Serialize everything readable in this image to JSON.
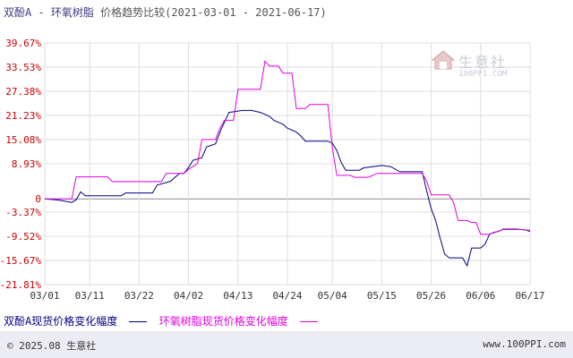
{
  "title": {
    "main": "双酚A - 环氧树脂",
    "sub": "价格趋势比较(2021-03-01 - 2021-06-17)"
  },
  "watermark": {
    "name": "生意社",
    "url": "100PPI.COM"
  },
  "legend": [
    {
      "label": "双酚A现货价格变化幅度",
      "color": "#000080"
    },
    {
      "label": "环氧树脂现货价格变化幅度",
      "color": "#e000e0"
    }
  ],
  "footer": {
    "copyright": "© 2025.08 生意社",
    "site": "www.100PPI.com"
  },
  "chart_data": {
    "type": "line",
    "y_unit": "%",
    "ylim": [
      -21.81,
      39.67
    ],
    "y_ticks": [
      "39.67%",
      "33.53%",
      "27.38%",
      "21.23%",
      "15.08%",
      "8.93%",
      "0",
      "-3.37%",
      "-9.52%",
      "-15.67%",
      "-21.81%"
    ],
    "y_tick_values": [
      39.67,
      33.53,
      27.38,
      21.23,
      15.08,
      8.93,
      0,
      -3.37,
      -9.52,
      -15.67,
      -21.81
    ],
    "x_range": [
      "2021-03-01",
      "2021-06-17"
    ],
    "x_ticks": [
      "03/01",
      "03/11",
      "03/22",
      "04/02",
      "04/13",
      "04/24",
      "05/04",
      "05/15",
      "05/26",
      "06/06",
      "06/17"
    ],
    "x_tick_dates": [
      "2021-03-01",
      "2021-03-11",
      "2021-03-22",
      "2021-04-02",
      "2021-04-13",
      "2021-04-24",
      "2021-05-04",
      "2021-05-15",
      "2021-05-26",
      "2021-06-06",
      "2021-06-17"
    ],
    "grid": true,
    "legend_position": "bottom",
    "series": [
      {
        "name": "双酚A现货价格变化幅度",
        "color": "#000080",
        "points": [
          [
            "2021-03-01",
            0
          ],
          [
            "2021-03-04",
            -0.3
          ],
          [
            "2021-03-06",
            -0.7
          ],
          [
            "2021-03-07",
            -0.9
          ],
          [
            "2021-03-08",
            -0.2
          ],
          [
            "2021-03-09",
            1.8
          ],
          [
            "2021-03-10",
            0.8
          ],
          [
            "2021-03-18",
            0.8
          ],
          [
            "2021-03-19",
            1.5
          ],
          [
            "2021-03-25",
            1.5
          ],
          [
            "2021-03-26",
            3.5
          ],
          [
            "2021-03-29",
            4.5
          ],
          [
            "2021-03-30",
            5.5
          ],
          [
            "2021-03-31",
            6.5
          ],
          [
            "2021-04-01",
            6.5
          ],
          [
            "2021-04-02",
            8.0
          ],
          [
            "2021-04-03",
            9.8
          ],
          [
            "2021-04-05",
            10.5
          ],
          [
            "2021-04-06",
            13.2
          ],
          [
            "2021-04-08",
            14.0
          ],
          [
            "2021-04-09",
            17.0
          ],
          [
            "2021-04-10",
            19.5
          ],
          [
            "2021-04-11",
            22.0
          ],
          [
            "2021-04-14",
            22.5
          ],
          [
            "2021-04-16",
            22.5
          ],
          [
            "2021-04-18",
            22.0
          ],
          [
            "2021-04-20",
            21.0
          ],
          [
            "2021-04-21",
            20.0
          ],
          [
            "2021-04-23",
            19.0
          ],
          [
            "2021-04-24",
            18.0
          ],
          [
            "2021-04-26",
            17.0
          ],
          [
            "2021-04-27",
            16.0
          ],
          [
            "2021-04-28",
            14.7
          ],
          [
            "2021-05-03",
            14.7
          ],
          [
            "2021-05-04",
            14.2
          ],
          [
            "2021-05-05",
            12.3
          ],
          [
            "2021-05-06",
            9.2
          ],
          [
            "2021-05-07",
            7.3
          ],
          [
            "2021-05-10",
            7.3
          ],
          [
            "2021-05-11",
            7.9
          ],
          [
            "2021-05-15",
            8.5
          ],
          [
            "2021-05-17",
            8.2
          ],
          [
            "2021-05-19",
            6.9
          ],
          [
            "2021-05-24",
            6.9
          ],
          [
            "2021-05-25",
            2.0
          ],
          [
            "2021-05-26",
            -2.5
          ],
          [
            "2021-05-27",
            -5.5
          ],
          [
            "2021-05-28",
            -10.0
          ],
          [
            "2021-05-29",
            -14.0
          ],
          [
            "2021-05-30",
            -15.0
          ],
          [
            "2021-06-02",
            -15.0
          ],
          [
            "2021-06-03",
            -17.0
          ],
          [
            "2021-06-04",
            -12.5
          ],
          [
            "2021-06-06",
            -12.5
          ],
          [
            "2021-06-07",
            -11.5
          ],
          [
            "2021-06-08",
            -9.0
          ],
          [
            "2021-06-09",
            -8.5
          ],
          [
            "2021-06-10",
            -8.3
          ],
          [
            "2021-06-11",
            -7.7
          ],
          [
            "2021-06-14",
            -7.7
          ],
          [
            "2021-06-16",
            -7.9
          ],
          [
            "2021-06-17",
            -8.3
          ]
        ]
      },
      {
        "name": "环氧树脂现货价格变化幅度",
        "color": "#e000e0",
        "points": [
          [
            "2021-03-01",
            0
          ],
          [
            "2021-03-07",
            0
          ],
          [
            "2021-03-08",
            5.6
          ],
          [
            "2021-03-15",
            5.6
          ],
          [
            "2021-03-16",
            4.4
          ],
          [
            "2021-03-27",
            4.4
          ],
          [
            "2021-03-28",
            6.5
          ],
          [
            "2021-04-01",
            6.5
          ],
          [
            "2021-04-02",
            7.5
          ],
          [
            "2021-04-04",
            9.0
          ],
          [
            "2021-04-05",
            15.1
          ],
          [
            "2021-04-08",
            15.1
          ],
          [
            "2021-04-09",
            18.0
          ],
          [
            "2021-04-10",
            20.0
          ],
          [
            "2021-04-12",
            20.0
          ],
          [
            "2021-04-13",
            27.9
          ],
          [
            "2021-04-18",
            27.9
          ],
          [
            "2021-04-19",
            35.0
          ],
          [
            "2021-04-20",
            33.8
          ],
          [
            "2021-04-22",
            33.8
          ],
          [
            "2021-04-23",
            32.0
          ],
          [
            "2021-04-25",
            32.0
          ],
          [
            "2021-04-26",
            23.0
          ],
          [
            "2021-04-28",
            23.0
          ],
          [
            "2021-04-29",
            24.0
          ],
          [
            "2021-05-03",
            24.0
          ],
          [
            "2021-05-04",
            13.0
          ],
          [
            "2021-05-05",
            6.0
          ],
          [
            "2021-05-08",
            6.0
          ],
          [
            "2021-05-09",
            5.5
          ],
          [
            "2021-05-12",
            5.5
          ],
          [
            "2021-05-14",
            6.5
          ],
          [
            "2021-05-24",
            6.5
          ],
          [
            "2021-05-25",
            4.5
          ],
          [
            "2021-05-26",
            1.0
          ],
          [
            "2021-05-30",
            1.0
          ],
          [
            "2021-05-31",
            -1.0
          ],
          [
            "2021-06-01",
            -5.5
          ],
          [
            "2021-06-03",
            -5.5
          ],
          [
            "2021-06-04",
            -6.0
          ],
          [
            "2021-06-05",
            -6.0
          ],
          [
            "2021-06-06",
            -9.0
          ],
          [
            "2021-06-08",
            -9.0
          ],
          [
            "2021-06-11",
            -7.8
          ],
          [
            "2021-06-15",
            -7.8
          ],
          [
            "2021-06-17",
            -8.0
          ]
        ]
      }
    ]
  }
}
